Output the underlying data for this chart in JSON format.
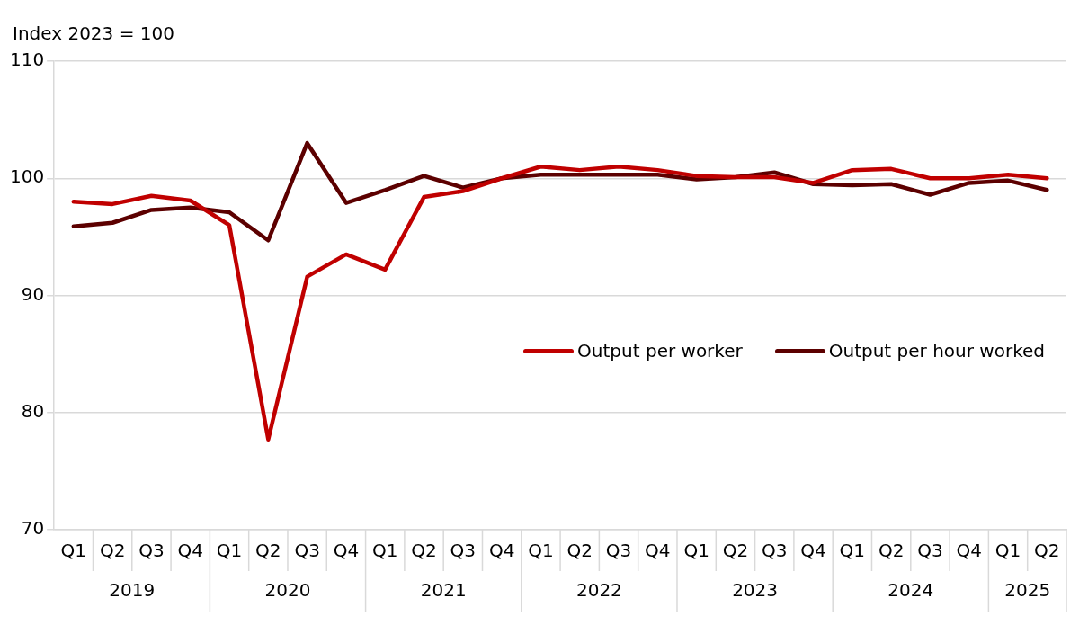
{
  "chart_data": {
    "type": "line",
    "ylabel": "Index 2023 = 100",
    "categories": [
      "Q1",
      "Q2",
      "Q3",
      "Q4",
      "Q1",
      "Q2",
      "Q3",
      "Q4",
      "Q1",
      "Q2",
      "Q3",
      "Q4",
      "Q1",
      "Q2",
      "Q3",
      "Q4",
      "Q1",
      "Q2",
      "Q3",
      "Q4",
      "Q1",
      "Q2",
      "Q3",
      "Q4",
      "Q1",
      "Q2"
    ],
    "annotations": [
      "2019",
      "2020",
      "2021",
      "2022",
      "2023",
      "2024",
      "2025"
    ],
    "series": [
      {
        "name": "Output per worker",
        "color": "#c00000",
        "values": [
          98.0,
          97.8,
          98.5,
          98.1,
          96.0,
          77.7,
          91.6,
          93.5,
          92.2,
          98.4,
          98.9,
          100.0,
          101.0,
          100.7,
          101.0,
          100.7,
          100.2,
          100.1,
          100.1,
          99.6,
          100.7,
          100.8,
          100.0,
          100.0,
          100.3,
          100.0
        ]
      },
      {
        "name": "Output per hour worked",
        "color": "#5c0000",
        "values": [
          95.9,
          96.2,
          97.3,
          97.5,
          97.1,
          94.7,
          103.0,
          97.9,
          99.0,
          100.2,
          99.2,
          100.0,
          100.3,
          100.3,
          100.3,
          100.3,
          99.9,
          100.1,
          100.5,
          99.5,
          99.4,
          99.5,
          98.6,
          99.6,
          99.8,
          99.0
        ]
      }
    ],
    "ylim": [
      70,
      110
    ],
    "yticks": [
      70,
      80,
      90,
      100,
      110
    ],
    "grid": "y",
    "legend": "right",
    "marker": "none",
    "line_style": "solid"
  }
}
